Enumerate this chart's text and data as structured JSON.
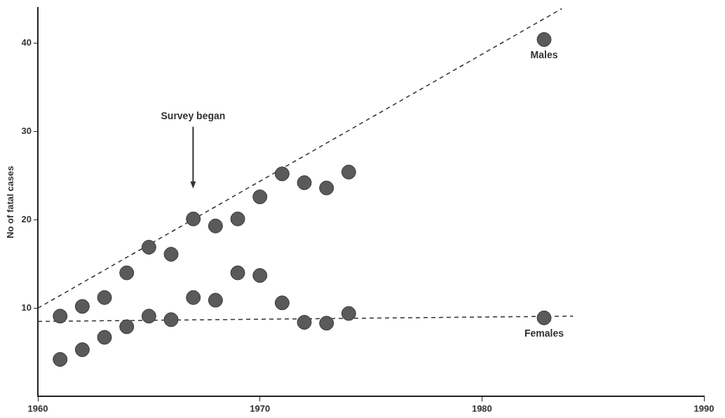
{
  "chart_data": {
    "type": "scatter",
    "ylabel": "No of fatal cases",
    "xlim": [
      1960,
      1990
    ],
    "xticks": [
      1960,
      1970,
      1980,
      1990
    ],
    "ylim": [
      0,
      44
    ],
    "yticks": [
      10,
      20,
      30,
      40
    ],
    "grid": false,
    "legend": false,
    "marker": "circle",
    "annotations": [
      "Survey began"
    ],
    "series": [
      {
        "name": "Males",
        "type": "scatter",
        "color": "#5a5a5a",
        "x": [
          1961,
          1962,
          1963,
          1964,
          1965,
          1966,
          1967,
          1968,
          1969,
          1970,
          1971,
          1972,
          1973,
          1974,
          1982.8
        ],
        "values": [
          9.1,
          10.2,
          11.2,
          14.0,
          16.9,
          16.1,
          20.1,
          19.3,
          20.1,
          22.6,
          25.2,
          24.2,
          23.6,
          25.4,
          40.4
        ]
      },
      {
        "name": "Females",
        "type": "scatter",
        "color": "#5a5a5a",
        "x": [
          1961,
          1962,
          1963,
          1964,
          1965,
          1966,
          1967,
          1968,
          1969,
          1970,
          1971,
          1972,
          1973,
          1974,
          1982.8
        ],
        "values": [
          4.2,
          5.3,
          6.7,
          7.9,
          9.1,
          8.7,
          11.2,
          10.9,
          14.0,
          13.7,
          10.6,
          8.4,
          8.3,
          9.4,
          8.9
        ]
      },
      {
        "type": "line",
        "color": "#333333",
        "line_style": "dashed",
        "marker": "none",
        "x": [
          1960,
          1983.6
        ],
        "values": [
          10,
          43.9
        ]
      },
      {
        "type": "line",
        "color": "#333333",
        "line_style": "dashed",
        "marker": "none",
        "x": [
          1960,
          1984.1
        ],
        "values": [
          8.5,
          9.1
        ]
      }
    ]
  }
}
